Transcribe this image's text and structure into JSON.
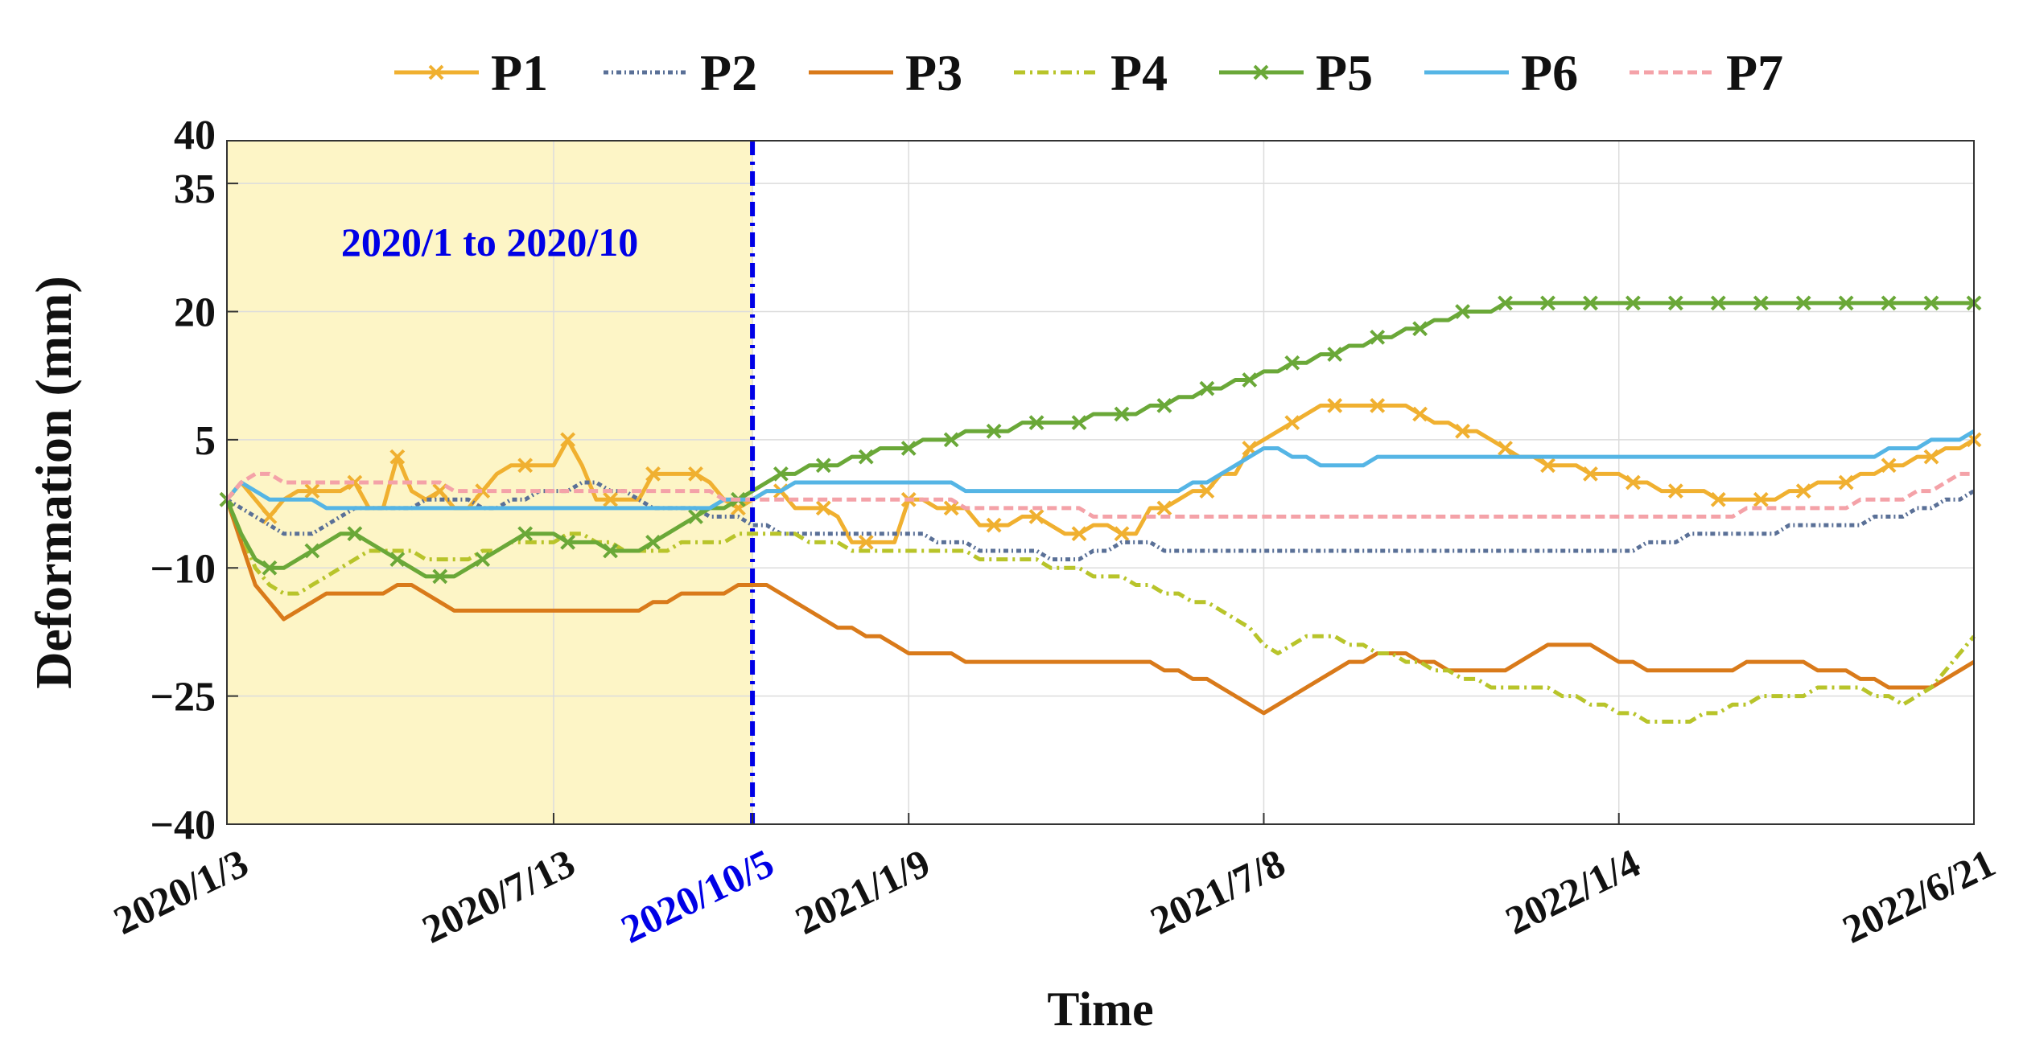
{
  "chart_data": {
    "type": "line",
    "title": "",
    "xlabel": "Time",
    "ylabel": "Deformation (mm)",
    "ylim": [
      -40,
      40
    ],
    "yticks": [
      -40,
      -25,
      -10,
      5,
      20,
      35,
      40
    ],
    "ytick_labels": [
      "−40",
      "−25",
      "−10",
      "5",
      "20",
      "35",
      "40"
    ],
    "xticks": [
      {
        "index": 0,
        "label": "2020/1/3",
        "highlight": false
      },
      {
        "index": 23,
        "label": "2020/7/13",
        "highlight": false
      },
      {
        "index": 37,
        "label": "2020/10/5",
        "highlight": true
      },
      {
        "index": 48,
        "label": "2021/1/9",
        "highlight": false
      },
      {
        "index": 73,
        "label": "2021/7/8",
        "highlight": false
      },
      {
        "index": 98,
        "label": "2022/1/4",
        "highlight": false
      },
      {
        "index": 123,
        "label": "2022/6/21",
        "highlight": false
      }
    ],
    "n_points": 124,
    "highlight_region": {
      "start_index": 0,
      "end_index": 37,
      "label": "2020/1 to 2020/10",
      "color": "#fdf5c6"
    },
    "divider": {
      "index": 37,
      "color": "#0000e6"
    },
    "legend_position": "top",
    "series": [
      {
        "name": "P1",
        "color": "#f0b030",
        "dash": "solid",
        "marker": "x",
        "values": [
          -2,
          0,
          -2,
          -4,
          -2,
          -1,
          -1,
          -1,
          -1,
          0,
          -3,
          -3,
          3,
          -1,
          -2,
          -1,
          -3,
          -3,
          -1,
          1,
          2,
          2,
          2,
          2,
          5,
          2,
          -2,
          -2,
          -2,
          -2,
          1,
          1,
          1,
          1,
          0,
          -2,
          -3,
          -2,
          -1,
          -1,
          -3,
          -3,
          -3,
          -4,
          -7,
          -7,
          -7,
          -7,
          -2,
          -2,
          -3,
          -3,
          -3,
          -5,
          -5,
          -5,
          -4,
          -4,
          -5,
          -6,
          -6,
          -5,
          -5,
          -6,
          -6,
          -3,
          -3,
          -2,
          -1,
          -1,
          1,
          1,
          4,
          5,
          6,
          7,
          8,
          9,
          9,
          9,
          9,
          9,
          9,
          9,
          8,
          7,
          7,
          6,
          6,
          5,
          4,
          3,
          3,
          2,
          2,
          2,
          1,
          1,
          1,
          0,
          0,
          -1,
          -1,
          -1,
          -1,
          -2,
          -2,
          -2,
          -2,
          -2,
          -1,
          -1,
          0,
          0,
          0,
          1,
          1,
          2,
          2,
          3,
          3,
          4,
          4,
          5
        ]
      },
      {
        "name": "P2",
        "color": "#5a7097",
        "dash": "6,4,2,4",
        "marker": "none",
        "values": [
          -2,
          -3,
          -4,
          -5,
          -6,
          -6,
          -6,
          -5,
          -4,
          -3,
          -3,
          -3,
          -3,
          -3,
          -2,
          -2,
          -2,
          -2,
          -3,
          -3,
          -2,
          -2,
          -1,
          -1,
          -1,
          0,
          0,
          -1,
          -1,
          -2,
          -3,
          -3,
          -3,
          -3,
          -4,
          -4,
          -4,
          -5,
          -5,
          -6,
          -6,
          -6,
          -6,
          -6,
          -6,
          -6,
          -6,
          -6,
          -6,
          -6,
          -7,
          -7,
          -7,
          -8,
          -8,
          -8,
          -8,
          -8,
          -9,
          -9,
          -9,
          -8,
          -8,
          -7,
          -7,
          -7,
          -8,
          -8,
          -8,
          -8,
          -8,
          -8,
          -8,
          -8,
          -8,
          -8,
          -8,
          -8,
          -8,
          -8,
          -8,
          -8,
          -8,
          -8,
          -8,
          -8,
          -8,
          -8,
          -8,
          -8,
          -8,
          -8,
          -8,
          -8,
          -8,
          -8,
          -8,
          -8,
          -8,
          -8,
          -7,
          -7,
          -7,
          -6,
          -6,
          -6,
          -6,
          -6,
          -6,
          -6,
          -5,
          -5,
          -5,
          -5,
          -5,
          -5,
          -4,
          -4,
          -4,
          -3,
          -3,
          -2,
          -2,
          -1
        ]
      },
      {
        "name": "P3",
        "color": "#d97a1a",
        "dash": "solid",
        "marker": "none",
        "values": [
          -2,
          -7,
          -12,
          -14,
          -16,
          -15,
          -14,
          -13,
          -13,
          -13,
          -13,
          -13,
          -12,
          -12,
          -13,
          -14,
          -15,
          -15,
          -15,
          -15,
          -15,
          -15,
          -15,
          -15,
          -15,
          -15,
          -15,
          -15,
          -15,
          -15,
          -14,
          -14,
          -13,
          -13,
          -13,
          -13,
          -12,
          -12,
          -12,
          -13,
          -14,
          -15,
          -16,
          -17,
          -17,
          -18,
          -18,
          -19,
          -20,
          -20,
          -20,
          -20,
          -21,
          -21,
          -21,
          -21,
          -21,
          -21,
          -21,
          -21,
          -21,
          -21,
          -21,
          -21,
          -21,
          -21,
          -22,
          -22,
          -23,
          -23,
          -24,
          -25,
          -26,
          -27,
          -26,
          -25,
          -24,
          -23,
          -22,
          -21,
          -21,
          -20,
          -20,
          -20,
          -21,
          -21,
          -22,
          -22,
          -22,
          -22,
          -22,
          -21,
          -20,
          -19,
          -19,
          -19,
          -19,
          -20,
          -21,
          -21,
          -22,
          -22,
          -22,
          -22,
          -22,
          -22,
          -22,
          -21,
          -21,
          -21,
          -21,
          -21,
          -22,
          -22,
          -22,
          -23,
          -23,
          -24,
          -24,
          -24,
          -24,
          -23,
          -22,
          -21
        ]
      },
      {
        "name": "P4",
        "color": "#b8c42a",
        "dash": "14,6,3,6",
        "marker": "none",
        "values": [
          -2,
          -6,
          -10,
          -12,
          -13,
          -13,
          -12,
          -11,
          -10,
          -9,
          -8,
          -8,
          -8,
          -8,
          -9,
          -9,
          -9,
          -9,
          -8,
          -8,
          -7,
          -7,
          -7,
          -7,
          -6,
          -6,
          -7,
          -7,
          -8,
          -8,
          -8,
          -8,
          -7,
          -7,
          -7,
          -7,
          -6,
          -6,
          -6,
          -6,
          -6,
          -7,
          -7,
          -7,
          -8,
          -8,
          -8,
          -8,
          -8,
          -8,
          -8,
          -8,
          -8,
          -9,
          -9,
          -9,
          -9,
          -9,
          -10,
          -10,
          -10,
          -11,
          -11,
          -11,
          -12,
          -12,
          -13,
          -13,
          -14,
          -14,
          -15,
          -16,
          -17,
          -19,
          -20,
          -19,
          -18,
          -18,
          -18,
          -19,
          -19,
          -20,
          -20,
          -21,
          -21,
          -22,
          -22,
          -23,
          -23,
          -24,
          -24,
          -24,
          -24,
          -24,
          -25,
          -25,
          -26,
          -26,
          -27,
          -27,
          -28,
          -28,
          -28,
          -28,
          -27,
          -27,
          -26,
          -26,
          -25,
          -25,
          -25,
          -25,
          -24,
          -24,
          -24,
          -24,
          -25,
          -25,
          -26,
          -25,
          -24,
          -22,
          -20,
          -18
        ]
      },
      {
        "name": "P5",
        "color": "#6aa838",
        "dash": "solid",
        "marker": "x",
        "values": [
          -2,
          -6,
          -9,
          -10,
          -10,
          -9,
          -8,
          -7,
          -6,
          -6,
          -7,
          -8,
          -9,
          -10,
          -11,
          -11,
          -11,
          -10,
          -9,
          -8,
          -7,
          -6,
          -6,
          -6,
          -7,
          -7,
          -7,
          -8,
          -8,
          -8,
          -7,
          -6,
          -5,
          -4,
          -3,
          -3,
          -2,
          -1,
          0,
          1,
          1,
          2,
          2,
          2,
          3,
          3,
          4,
          4,
          4,
          5,
          5,
          5,
          6,
          6,
          6,
          6,
          7,
          7,
          7,
          7,
          7,
          8,
          8,
          8,
          8,
          9,
          9,
          10,
          10,
          11,
          11,
          12,
          12,
          13,
          13,
          14,
          14,
          15,
          15,
          16,
          16,
          17,
          17,
          18,
          18,
          19,
          19,
          20,
          20,
          20,
          21,
          21,
          21,
          21,
          21,
          21,
          21,
          21,
          21,
          21,
          21,
          21,
          21,
          21,
          21,
          21,
          21,
          21,
          21,
          21,
          21,
          21,
          21,
          21,
          21,
          21,
          21,
          21,
          21,
          21,
          21,
          21,
          21,
          21
        ]
      },
      {
        "name": "P6",
        "color": "#55b5e5",
        "dash": "solid",
        "marker": "none",
        "values": [
          -2,
          0,
          -1,
          -2,
          -2,
          -2,
          -2,
          -3,
          -3,
          -3,
          -3,
          -3,
          -3,
          -3,
          -3,
          -3,
          -3,
          -3,
          -3,
          -3,
          -3,
          -3,
          -3,
          -3,
          -3,
          -3,
          -3,
          -3,
          -3,
          -3,
          -3,
          -3,
          -3,
          -3,
          -3,
          -2,
          -2,
          -2,
          -1,
          -1,
          0,
          0,
          0,
          0,
          0,
          0,
          0,
          0,
          0,
          0,
          0,
          0,
          -1,
          -1,
          -1,
          -1,
          -1,
          -1,
          -1,
          -1,
          -1,
          -1,
          -1,
          -1,
          -1,
          -1,
          -1,
          -1,
          0,
          0,
          1,
          2,
          3,
          4,
          4,
          3,
          3,
          2,
          2,
          2,
          2,
          3,
          3,
          3,
          3,
          3,
          3,
          3,
          3,
          3,
          3,
          3,
          3,
          3,
          3,
          3,
          3,
          3,
          3,
          3,
          3,
          3,
          3,
          3,
          3,
          3,
          3,
          3,
          3,
          3,
          3,
          3,
          3,
          3,
          3,
          3,
          3,
          4,
          4,
          4,
          5,
          5,
          5,
          6
        ]
      },
      {
        "name": "P7",
        "color": "#f4a2a8",
        "dash": "12,6",
        "marker": "none",
        "values": [
          -2,
          0,
          1,
          1,
          0,
          0,
          0,
          0,
          0,
          0,
          0,
          0,
          0,
          0,
          0,
          0,
          -1,
          -1,
          -1,
          -1,
          -1,
          -1,
          -1,
          -1,
          -1,
          -1,
          -1,
          -1,
          -1,
          -1,
          -1,
          -1,
          -1,
          -1,
          -1,
          -2,
          -2,
          -2,
          -2,
          -2,
          -2,
          -2,
          -2,
          -2,
          -2,
          -2,
          -2,
          -2,
          -2,
          -2,
          -2,
          -2,
          -3,
          -3,
          -3,
          -3,
          -3,
          -3,
          -3,
          -3,
          -3,
          -4,
          -4,
          -4,
          -4,
          -4,
          -4,
          -4,
          -4,
          -4,
          -4,
          -4,
          -4,
          -4,
          -4,
          -4,
          -4,
          -4,
          -4,
          -4,
          -4,
          -4,
          -4,
          -4,
          -4,
          -4,
          -4,
          -4,
          -4,
          -4,
          -4,
          -4,
          -4,
          -4,
          -4,
          -4,
          -4,
          -4,
          -4,
          -4,
          -4,
          -4,
          -4,
          -4,
          -4,
          -4,
          -4,
          -3,
          -3,
          -3,
          -3,
          -3,
          -3,
          -3,
          -3,
          -2,
          -2,
          -2,
          -2,
          -1,
          -1,
          0,
          1,
          1
        ]
      }
    ]
  }
}
